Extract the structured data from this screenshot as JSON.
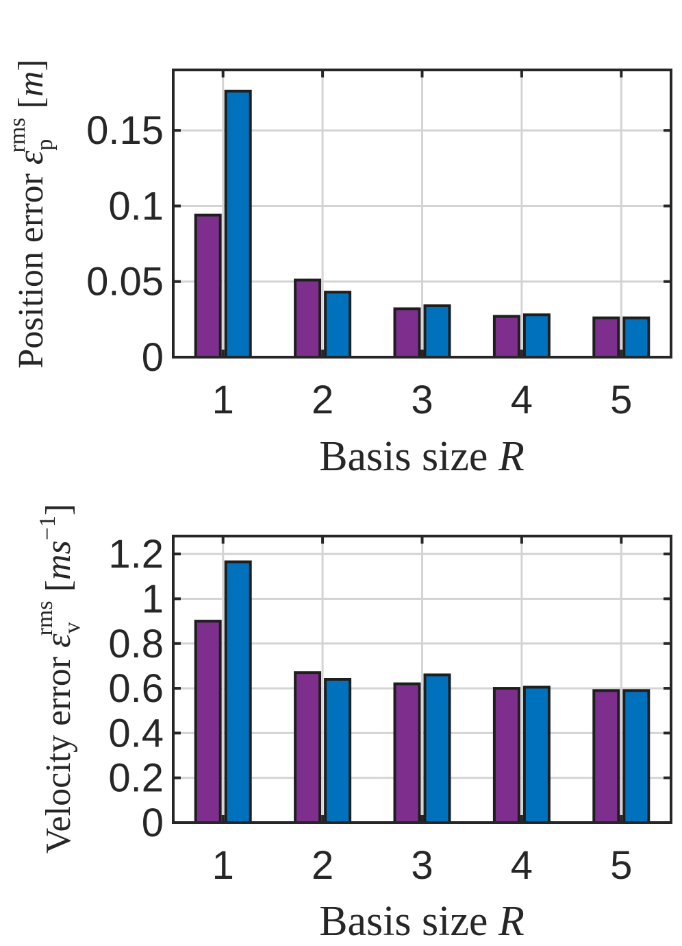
{
  "chart_data": [
    {
      "type": "bar",
      "id": "position",
      "categories": [
        "1",
        "2",
        "3",
        "4",
        "5"
      ],
      "series": [
        {
          "name": "series-1",
          "color": "#7e2f8e",
          "values": [
            0.094,
            0.051,
            0.032,
            0.027,
            0.026
          ]
        },
        {
          "name": "series-2",
          "color": "#0072bd",
          "values": [
            0.176,
            0.043,
            0.034,
            0.028,
            0.026
          ]
        }
      ],
      "xlabel": {
        "text": "Basis size ",
        "var": "R"
      },
      "ylabel": {
        "text": "Position error ",
        "sym": "ε",
        "sub": "p",
        "sup": "rms",
        "unit": " [",
        "unit_var": "m",
        "unit_end": "]"
      },
      "ylim": [
        0,
        0.19
      ],
      "yticks": [
        0,
        0.05,
        0.1,
        0.15
      ],
      "ytick_labels": [
        "0",
        "0.05",
        "0.1",
        "0.15"
      ],
      "grid": true
    },
    {
      "type": "bar",
      "id": "velocity",
      "categories": [
        "1",
        "2",
        "3",
        "4",
        "5"
      ],
      "series": [
        {
          "name": "series-1",
          "color": "#7e2f8e",
          "values": [
            0.9,
            0.67,
            0.62,
            0.6,
            0.59
          ]
        },
        {
          "name": "series-2",
          "color": "#0072bd",
          "values": [
            1.165,
            0.64,
            0.66,
            0.605,
            0.59
          ]
        }
      ],
      "xlabel": {
        "text": "Basis size ",
        "var": "R"
      },
      "ylabel": {
        "text": "Velocity error ",
        "sym": "ε",
        "sub": "v",
        "sup": "rms",
        "unit": " [",
        "unit_var": "ms",
        "unit_sup": "−1",
        "unit_end": "]"
      },
      "ylim": [
        0,
        1.28
      ],
      "yticks": [
        0,
        0.2,
        0.4,
        0.6,
        0.8,
        1,
        1.2
      ],
      "ytick_labels": [
        "0",
        "0.2",
        "0.4",
        "0.6",
        "0.8",
        "1",
        "1.2"
      ],
      "grid": true
    }
  ]
}
